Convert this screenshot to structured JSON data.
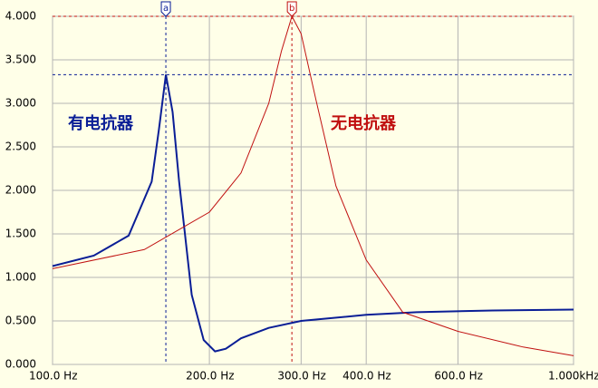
{
  "chart_data": {
    "type": "line",
    "xscale": "log",
    "xlim": [
      100,
      1000
    ],
    "ylim": [
      0,
      4
    ],
    "xticks": [
      {
        "value": 100,
        "label": "100.0 Hz"
      },
      {
        "value": 200,
        "label": "200.0 Hz"
      },
      {
        "value": 300,
        "label": "300.0 Hz"
      },
      {
        "value": 400,
        "label": "400.0 Hz"
      },
      {
        "value": 600,
        "label": "600.0 Hz"
      },
      {
        "value": 1000,
        "label": "1.000kHz"
      }
    ],
    "yticks": [
      {
        "value": 0,
        "label": "0.000"
      },
      {
        "value": 0.5,
        "label": "0.500"
      },
      {
        "value": 1,
        "label": "1.000"
      },
      {
        "value": 1.5,
        "label": "1.500"
      },
      {
        "value": 2,
        "label": "2.000"
      },
      {
        "value": 2.5,
        "label": "2.500"
      },
      {
        "value": 3,
        "label": "3.000"
      },
      {
        "value": 3.5,
        "label": "3.500"
      },
      {
        "value": 4,
        "label": "4.000"
      }
    ],
    "grid": true,
    "series": [
      {
        "name": "有电抗器",
        "color": "#0a1e96",
        "x": [
          100,
          120,
          140,
          155,
          160,
          165,
          170,
          175,
          185,
          195,
          205,
          215,
          230,
          260,
          300,
          400,
          500,
          700,
          1000
        ],
        "values": [
          1.13,
          1.25,
          1.48,
          2.1,
          2.7,
          3.33,
          2.9,
          2.1,
          0.8,
          0.28,
          0.15,
          0.18,
          0.3,
          0.42,
          0.5,
          0.57,
          0.6,
          0.62,
          0.63
        ]
      },
      {
        "name": "无电抗器",
        "color": "#c01010",
        "x": [
          100,
          150,
          200,
          230,
          260,
          275,
          288,
          300,
          320,
          350,
          400,
          470,
          600,
          800,
          1000
        ],
        "values": [
          1.1,
          1.32,
          1.75,
          2.2,
          3.0,
          3.6,
          4.0,
          3.8,
          3.05,
          2.05,
          1.2,
          0.6,
          0.38,
          0.2,
          0.1
        ]
      }
    ],
    "markers": [
      {
        "label": "a",
        "x": 165,
        "y": 3.33,
        "color": "#0a1e96"
      },
      {
        "label": "b",
        "x": 288,
        "y": 4.0,
        "color": "#c01010"
      }
    ]
  }
}
